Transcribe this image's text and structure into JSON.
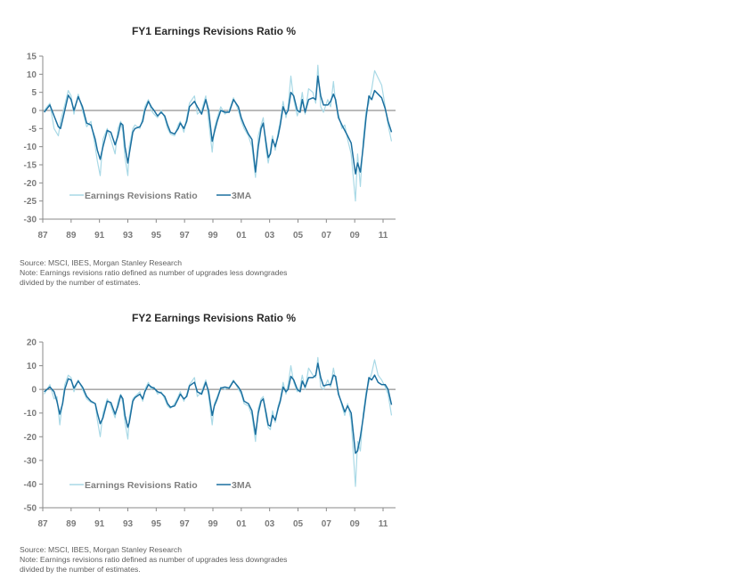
{
  "colors": {
    "raw": "#a9d9e6",
    "ma": "#1b6f9f",
    "axis": "#8a8a8a"
  },
  "chart_data": [
    {
      "type": "line",
      "title": "FY1 Earnings Revisions Ratio %",
      "xlabel": "",
      "ylabel": "",
      "xlim": [
        1987,
        2011.7
      ],
      "ylim": [
        -30,
        15
      ],
      "yticks": [
        "15",
        "10",
        "5",
        "0",
        "-5",
        "-10",
        "-15",
        "-20",
        "-25",
        "-30"
      ],
      "ytick_values": [
        15,
        10,
        5,
        0,
        -5,
        -10,
        -15,
        -20,
        -25,
        -30
      ],
      "xticks": [
        "87",
        "89",
        "91",
        "93",
        "95",
        "97",
        "99",
        "01",
        "03",
        "05",
        "07",
        "09",
        "11"
      ],
      "xtick_values": [
        1987,
        1989,
        1991,
        1993,
        1995,
        1997,
        1999,
        2001,
        2003,
        2005,
        2007,
        2009,
        2011
      ],
      "legend": {
        "position": "bottom-left",
        "raw": "Earnings Revisions Ratio",
        "ma": "3MA"
      },
      "source": "Source: MSCI, IBES, Morgan Stanley Research",
      "note1": "Note: Earnings revisions ratio defined as number of upgrades less downgrades",
      "note2": "divided by the number of estimates.",
      "point_format": [
        "year",
        "3MA",
        "Earnings Revisions Ratio"
      ],
      "points": [
        [
          1987.1,
          -0.5,
          0
        ],
        [
          1987.5,
          1.5,
          2
        ],
        [
          1987.8,
          -1.5,
          -5
        ],
        [
          1988.1,
          -4.5,
          -7
        ],
        [
          1988.25,
          -5,
          -3
        ],
        [
          1988.55,
          0,
          1.5
        ],
        [
          1988.8,
          4.2,
          5.5
        ],
        [
          1989.0,
          3,
          4
        ],
        [
          1989.2,
          0,
          -1
        ],
        [
          1989.5,
          3.8,
          4.5
        ],
        [
          1989.8,
          1,
          0
        ],
        [
          1990.1,
          -3.5,
          -4.5
        ],
        [
          1990.4,
          -4,
          -3
        ],
        [
          1990.7,
          -8,
          -10
        ],
        [
          1990.85,
          -11,
          -14
        ],
        [
          1991.05,
          -13.5,
          -18
        ],
        [
          1991.25,
          -10,
          -8
        ],
        [
          1991.55,
          -5.5,
          -5
        ],
        [
          1991.8,
          -6,
          -8
        ],
        [
          1992.1,
          -9.5,
          -12
        ],
        [
          1992.3,
          -7,
          -5
        ],
        [
          1992.5,
          -3.5,
          -3
        ],
        [
          1992.65,
          -4,
          -6
        ],
        [
          1992.8,
          -10,
          -13
        ],
        [
          1993.0,
          -14.5,
          -18
        ],
        [
          1993.1,
          -12,
          -10
        ],
        [
          1993.35,
          -6,
          -5
        ],
        [
          1993.5,
          -5,
          -4
        ],
        [
          1993.85,
          -4.5,
          -5
        ],
        [
          1994.05,
          -3,
          -2
        ],
        [
          1994.2,
          0,
          1
        ],
        [
          1994.45,
          2.5,
          3
        ],
        [
          1994.65,
          1,
          0
        ],
        [
          1994.85,
          0,
          -1
        ],
        [
          1995.1,
          -1.5,
          -2
        ],
        [
          1995.35,
          -0.5,
          0
        ],
        [
          1995.6,
          -1.5,
          -2
        ],
        [
          1995.8,
          -4,
          -5
        ],
        [
          1996.0,
          -6,
          -6.5
        ],
        [
          1996.3,
          -6.5,
          -7
        ],
        [
          1996.55,
          -5,
          -4
        ],
        [
          1996.7,
          -3.5,
          -3
        ],
        [
          1996.95,
          -5,
          -6
        ],
        [
          1997.15,
          -3,
          -2
        ],
        [
          1997.35,
          1,
          2
        ],
        [
          1997.7,
          2.5,
          4
        ],
        [
          1997.9,
          1,
          -1
        ],
        [
          1998.2,
          -1,
          0
        ],
        [
          1998.5,
          3,
          4
        ],
        [
          1998.7,
          0,
          -3
        ],
        [
          1998.95,
          -8.5,
          -11.5
        ],
        [
          1999.1,
          -6,
          -5
        ],
        [
          1999.3,
          -3,
          -2
        ],
        [
          1999.55,
          0,
          1
        ],
        [
          1999.85,
          -0.5,
          -1
        ],
        [
          2000.15,
          -0.5,
          0
        ],
        [
          2000.45,
          3,
          3.5
        ],
        [
          2000.8,
          1,
          0
        ],
        [
          2001.0,
          -2,
          -3
        ],
        [
          2001.2,
          -4,
          -5
        ],
        [
          2001.5,
          -6.5,
          -7
        ],
        [
          2001.75,
          -8,
          -10
        ],
        [
          2002.0,
          -17,
          -18.5
        ],
        [
          2002.2,
          -10,
          -7
        ],
        [
          2002.4,
          -5,
          -4
        ],
        [
          2002.55,
          -3.5,
          -2
        ],
        [
          2002.75,
          -9,
          -11
        ],
        [
          2002.9,
          -13,
          -14.5
        ],
        [
          2003.05,
          -12,
          -11
        ],
        [
          2003.2,
          -8,
          -7
        ],
        [
          2003.4,
          -10,
          -11
        ],
        [
          2003.6,
          -7,
          -6
        ],
        [
          2003.75,
          -4,
          -3
        ],
        [
          2003.95,
          1,
          2.5
        ],
        [
          2004.15,
          -1,
          -2
        ],
        [
          2004.3,
          0,
          1
        ],
        [
          2004.5,
          5,
          9.5
        ],
        [
          2004.7,
          4,
          3
        ],
        [
          2004.95,
          0,
          -1.5
        ],
        [
          2005.15,
          -0.5,
          1
        ],
        [
          2005.3,
          3,
          5
        ],
        [
          2005.5,
          -0.5,
          -1
        ],
        [
          2005.75,
          3,
          6
        ],
        [
          2006.05,
          3.5,
          5
        ],
        [
          2006.25,
          3,
          2
        ],
        [
          2006.4,
          9.5,
          12.5
        ],
        [
          2006.6,
          4,
          1
        ],
        [
          2006.8,
          1.5,
          -0.5
        ],
        [
          2007.1,
          1.5,
          3
        ],
        [
          2007.3,
          2.5,
          1
        ],
        [
          2007.5,
          4.5,
          8
        ],
        [
          2007.65,
          3,
          2
        ],
        [
          2007.85,
          -2,
          -1
        ],
        [
          2008.1,
          -4,
          -5
        ],
        [
          2008.3,
          -5.5,
          -4
        ],
        [
          2008.5,
          -7,
          -8
        ],
        [
          2008.75,
          -9,
          -12
        ],
        [
          2009.05,
          -17.5,
          -25
        ],
        [
          2009.2,
          -14.5,
          -12
        ],
        [
          2009.4,
          -17,
          -21
        ],
        [
          2009.6,
          -10,
          -8
        ],
        [
          2009.8,
          -2,
          0
        ],
        [
          2010.0,
          4,
          2
        ],
        [
          2010.2,
          3,
          6
        ],
        [
          2010.4,
          5.5,
          11
        ],
        [
          2010.65,
          4.5,
          9
        ],
        [
          2010.9,
          3.5,
          7
        ],
        [
          2011.15,
          0.5,
          1
        ],
        [
          2011.35,
          -3,
          -4
        ],
        [
          2011.6,
          -6,
          -8.5
        ]
      ]
    },
    {
      "type": "line",
      "title": "FY2 Earnings Revisions Ratio %",
      "xlabel": "",
      "ylabel": "",
      "xlim": [
        1987,
        2011.7
      ],
      "ylim": [
        -50,
        20
      ],
      "yticks": [
        "20",
        "10",
        "0",
        "-10",
        "-20",
        "-30",
        "-40",
        "-50"
      ],
      "ytick_values": [
        20,
        10,
        0,
        -10,
        -20,
        -30,
        -40,
        -50
      ],
      "xticks": [
        "87",
        "89",
        "91",
        "93",
        "95",
        "97",
        "99",
        "01",
        "03",
        "05",
        "07",
        "09",
        "11"
      ],
      "xtick_values": [
        1987,
        1989,
        1991,
        1993,
        1995,
        1997,
        1999,
        2001,
        2003,
        2005,
        2007,
        2009,
        2011
      ],
      "legend": {
        "position": "bottom-left",
        "raw": "Earnings Revisions Ratio",
        "ma": "3MA"
      },
      "source": "Source: MSCI, IBES, Morgan Stanley Research",
      "note1": "Note: Earnings revisions ratio defined as number of upgrades less downgrades",
      "note2": "divided by the number of estimates.",
      "point_format": [
        "year",
        "3MA",
        "Earnings Revisions Ratio"
      ],
      "points": [
        [
          1987.1,
          -1,
          -2
        ],
        [
          1987.5,
          1,
          2
        ],
        [
          1987.8,
          -1,
          -4
        ],
        [
          1988.0,
          -5,
          -3
        ],
        [
          1988.2,
          -10.5,
          -15
        ],
        [
          1988.4,
          -6,
          -5
        ],
        [
          1988.55,
          0,
          2
        ],
        [
          1988.8,
          4.5,
          6
        ],
        [
          1989.0,
          4,
          5
        ],
        [
          1989.2,
          0.5,
          -1
        ],
        [
          1989.5,
          3.5,
          4
        ],
        [
          1989.8,
          1,
          0
        ],
        [
          1990.1,
          -3,
          -4
        ],
        [
          1990.4,
          -5,
          -5.5
        ],
        [
          1990.7,
          -6,
          -6
        ],
        [
          1990.85,
          -10,
          -13
        ],
        [
          1991.05,
          -14.5,
          -20
        ],
        [
          1991.25,
          -12,
          -10
        ],
        [
          1991.55,
          -5,
          -4
        ],
        [
          1991.8,
          -5.5,
          -7
        ],
        [
          1992.1,
          -10.5,
          -12
        ],
        [
          1992.3,
          -7,
          -5
        ],
        [
          1992.5,
          -2.5,
          -2
        ],
        [
          1992.65,
          -4,
          -6
        ],
        [
          1992.8,
          -11,
          -14
        ],
        [
          1993.0,
          -16,
          -21
        ],
        [
          1993.1,
          -14,
          -12
        ],
        [
          1993.35,
          -5,
          -4
        ],
        [
          1993.5,
          -3.5,
          -3
        ],
        [
          1993.85,
          -2,
          -1
        ],
        [
          1994.05,
          -4,
          -5
        ],
        [
          1994.2,
          -1,
          0
        ],
        [
          1994.45,
          2,
          3
        ],
        [
          1994.65,
          1,
          0
        ],
        [
          1994.85,
          0.5,
          1
        ],
        [
          1995.1,
          -1,
          -2
        ],
        [
          1995.35,
          -1.5,
          -1
        ],
        [
          1995.6,
          -3,
          -4
        ],
        [
          1995.8,
          -6,
          -7
        ],
        [
          1996.0,
          -7.5,
          -8
        ],
        [
          1996.3,
          -7,
          -6
        ],
        [
          1996.55,
          -4,
          -3
        ],
        [
          1996.7,
          -2,
          -1
        ],
        [
          1996.95,
          -4,
          -5
        ],
        [
          1997.15,
          -3,
          -2
        ],
        [
          1997.35,
          1.5,
          2
        ],
        [
          1997.7,
          3,
          5
        ],
        [
          1997.9,
          -1,
          -3
        ],
        [
          1998.2,
          -2,
          -1
        ],
        [
          1998.5,
          3,
          4
        ],
        [
          1998.7,
          -1,
          -3
        ],
        [
          1998.95,
          -11,
          -15
        ],
        [
          1999.1,
          -7,
          -6
        ],
        [
          1999.3,
          -4,
          -3
        ],
        [
          1999.55,
          0.5,
          1
        ],
        [
          1999.85,
          1,
          0
        ],
        [
          2000.15,
          0.5,
          1
        ],
        [
          2000.45,
          3.5,
          4
        ],
        [
          2000.8,
          1,
          0
        ],
        [
          2001.0,
          -1,
          -2
        ],
        [
          2001.2,
          -5,
          -6
        ],
        [
          2001.5,
          -6,
          -7
        ],
        [
          2001.75,
          -9,
          -11
        ],
        [
          2002.0,
          -19,
          -22
        ],
        [
          2002.2,
          -10,
          -8
        ],
        [
          2002.4,
          -5,
          -4
        ],
        [
          2002.55,
          -4,
          -3
        ],
        [
          2002.75,
          -10,
          -12
        ],
        [
          2002.9,
          -15,
          -16
        ],
        [
          2003.05,
          -15.5,
          -17
        ],
        [
          2003.2,
          -11,
          -9
        ],
        [
          2003.4,
          -13,
          -14
        ],
        [
          2003.6,
          -8,
          -7
        ],
        [
          2003.75,
          -5,
          -4
        ],
        [
          2003.95,
          1,
          3
        ],
        [
          2004.15,
          -1,
          -2
        ],
        [
          2004.3,
          0,
          2
        ],
        [
          2004.5,
          5.5,
          10
        ],
        [
          2004.7,
          4,
          3
        ],
        [
          2004.95,
          0,
          -1
        ],
        [
          2005.15,
          -1,
          1
        ],
        [
          2005.3,
          3.5,
          6
        ],
        [
          2005.5,
          1,
          0
        ],
        [
          2005.75,
          5,
          9
        ],
        [
          2006.05,
          5,
          6
        ],
        [
          2006.25,
          6,
          5
        ],
        [
          2006.4,
          11,
          13.5
        ],
        [
          2006.6,
          5,
          1
        ],
        [
          2006.8,
          1.5,
          0
        ],
        [
          2007.1,
          2,
          4
        ],
        [
          2007.3,
          2,
          1
        ],
        [
          2007.5,
          6,
          9
        ],
        [
          2007.65,
          5.5,
          4
        ],
        [
          2007.85,
          -2,
          -1
        ],
        [
          2008.1,
          -6,
          -7
        ],
        [
          2008.3,
          -9.5,
          -11
        ],
        [
          2008.5,
          -7,
          -6
        ],
        [
          2008.75,
          -10,
          -13
        ],
        [
          2009.05,
          -27,
          -41
        ],
        [
          2009.2,
          -26,
          -22
        ],
        [
          2009.4,
          -20,
          -26
        ],
        [
          2009.6,
          -12,
          -10
        ],
        [
          2009.8,
          -3,
          -1
        ],
        [
          2010.0,
          5,
          3
        ],
        [
          2010.2,
          4,
          7
        ],
        [
          2010.4,
          6,
          12.5
        ],
        [
          2010.65,
          3,
          6
        ],
        [
          2010.9,
          2,
          4
        ],
        [
          2011.15,
          2,
          1
        ],
        [
          2011.35,
          0,
          -2
        ],
        [
          2011.6,
          -6.5,
          -11
        ]
      ]
    }
  ]
}
